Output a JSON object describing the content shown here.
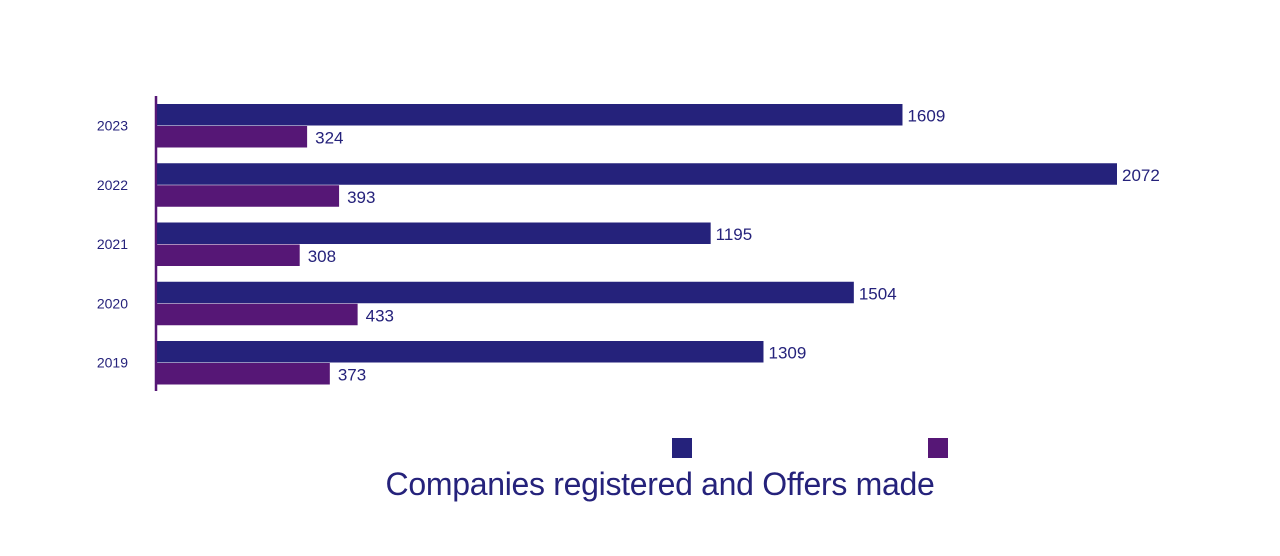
{
  "chart_data": {
    "type": "bar",
    "orientation": "horizontal",
    "title": "Companies registered and Offers made",
    "categories": [
      "2023",
      "2022",
      "2021",
      "2020",
      "2019"
    ],
    "series": [
      {
        "color": "#25227b",
        "values": [
          1609,
          2072,
          1195,
          1504,
          1309
        ]
      },
      {
        "color": "#561776",
        "values": [
          324,
          393,
          308,
          433,
          373
        ]
      }
    ],
    "xlim": [
      0,
      2072
    ],
    "grid": false,
    "legend": "bottom-center",
    "data_labels": true
  },
  "colors": {
    "series_1": "#25227b",
    "series_2": "#561776",
    "axis": "#561776",
    "text": "#25227b"
  }
}
